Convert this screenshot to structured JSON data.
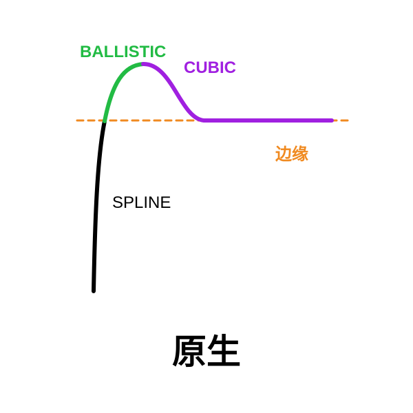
{
  "labels": {
    "ballistic": "BALLISTIC",
    "cubic": "CUBIC",
    "edge": "边缘",
    "spline": "SPLINE",
    "title": "原生"
  },
  "colors": {
    "ballistic": "#22bb44",
    "cubic": "#a020e0",
    "spline": "#000000",
    "edge": "#f08a20",
    "title": "#000000"
  }
}
